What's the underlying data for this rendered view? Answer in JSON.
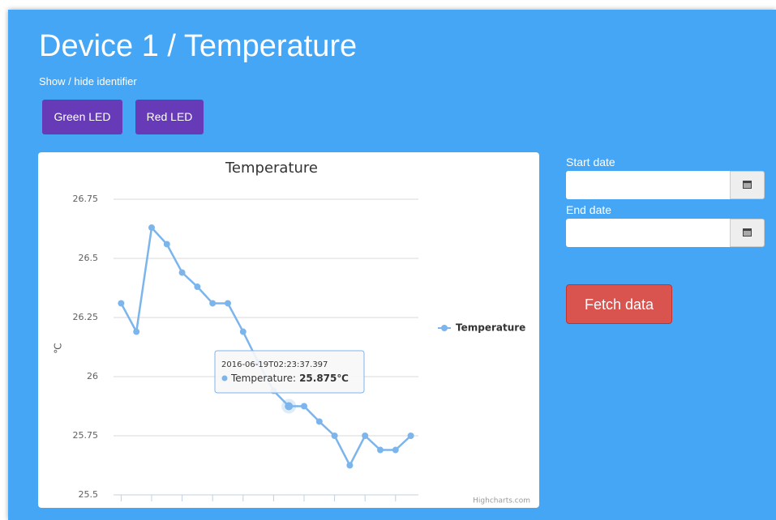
{
  "header": {
    "title": "Device 1 / Temperature",
    "toggle": "Show / hide identifier"
  },
  "buttons": [
    "Green LED",
    "Red LED"
  ],
  "form": {
    "start_label": "Start date",
    "end_label": "End date",
    "submit": "Fetch data"
  },
  "chart_data": {
    "type": "line",
    "title": "Temperature",
    "y_label": "℃",
    "credits": "Highcharts.com",
    "categories": [
      null,
      null,
      null,
      null,
      null,
      null,
      null,
      null,
      null,
      null,
      null,
      null,
      null,
      null,
      null,
      null,
      null,
      null,
      null,
      null
    ],
    "series": [
      {
        "name": "Temperature",
        "color": "#7cb5ec",
        "values": [
          26.31,
          26.19,
          26.63,
          26.56,
          26.44,
          26.38,
          26.31,
          26.31,
          26.19,
          26.06,
          25.94,
          25.875,
          25.875,
          25.81,
          25.75,
          25.625,
          25.75,
          25.69,
          25.69,
          25.75
        ]
      }
    ],
    "ylim": [
      25.5,
      26.75
    ],
    "yticks": [
      25.5,
      25.75,
      26,
      26.25,
      26.5,
      26.75
    ],
    "grid": true,
    "legend": "right",
    "tooltip": {
      "x": "2016-06-19T02:23:37.397",
      "label": "Temperature:",
      "value": "25.875℃"
    }
  }
}
